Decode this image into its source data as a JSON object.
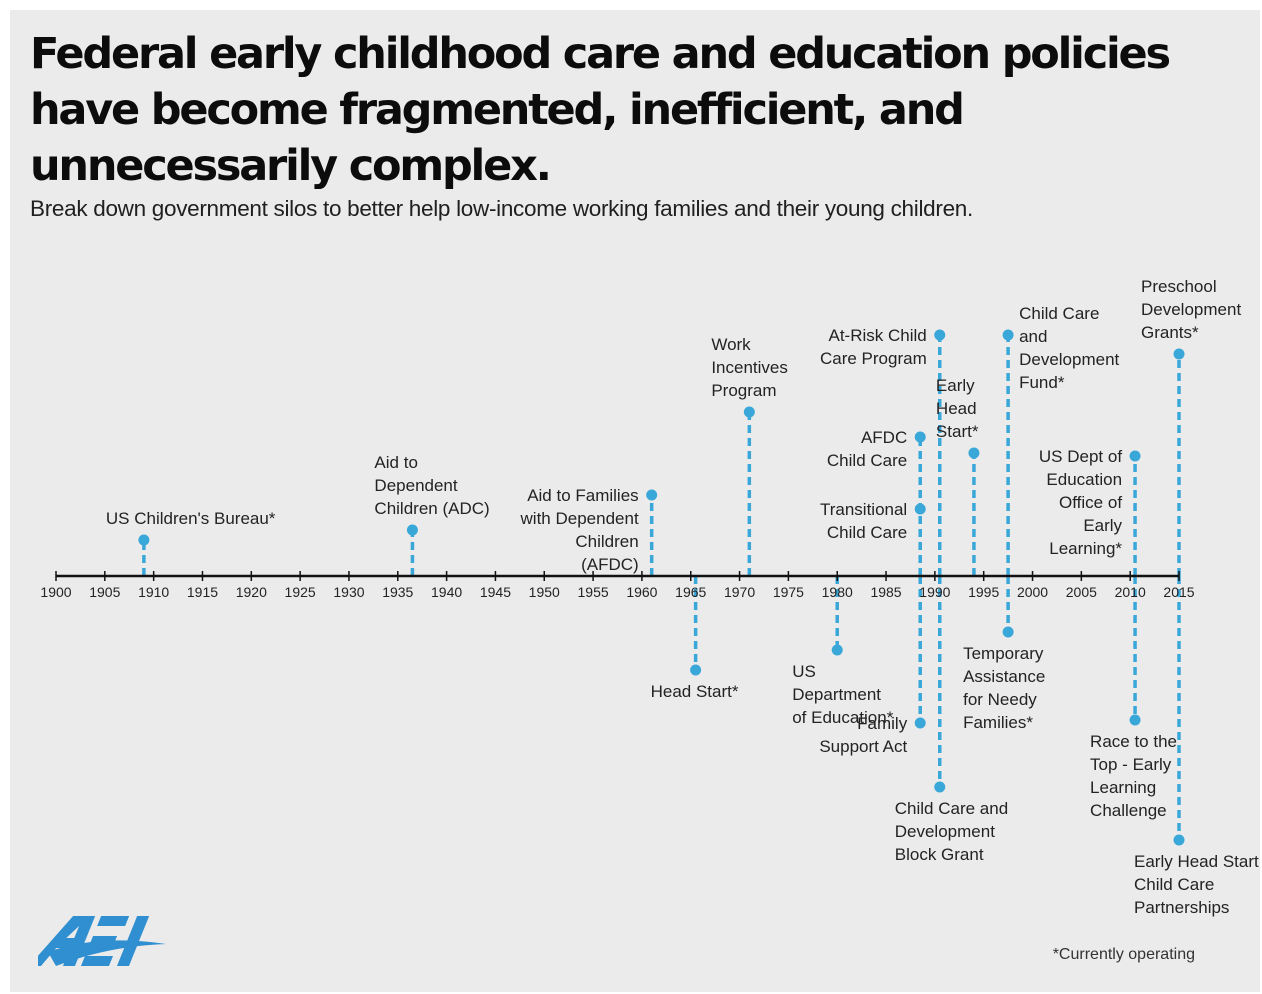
{
  "title": "Federal early childhood care and education policies have become fragmented, inefficient, and unnecessarily complex.",
  "subtitle": "Break down government silos to better help low-income working families and their young children.",
  "footnote": "*Currently operating",
  "logo_text": "AEI",
  "colors": {
    "background": "#ebebeb",
    "accent": "#3aa7d9",
    "logo": "#2f8fd0",
    "text": "#0c0c0c"
  },
  "axis": {
    "min": 1900,
    "max": 2015,
    "step": 5
  },
  "events": [
    {
      "year": 1909,
      "label": [
        "US Children's Bureau*"
      ],
      "end": 540,
      "label_pos": "above"
    },
    {
      "year": 1936.5,
      "label": [
        "Aid to",
        "Dependent",
        "Children (ADC)"
      ],
      "end": 530,
      "label_pos": "above"
    },
    {
      "year": 1961,
      "label": [
        "Aid to Families",
        "with Dependent",
        "Children",
        "(AFDC)"
      ],
      "end": 495,
      "label_pos": "left"
    },
    {
      "year": 1965.5,
      "label": [
        "Head Start*"
      ],
      "end": 670,
      "label_pos": "below"
    },
    {
      "year": 1971,
      "label": [
        "Work",
        "Incentives",
        "Program"
      ],
      "end": 412,
      "label_pos": "above"
    },
    {
      "year": 1980,
      "label": [
        "US",
        "Department",
        "of Education*"
      ],
      "end": 650,
      "label_pos": "below"
    },
    {
      "year": 1988.5,
      "label": [
        "AFDC",
        "Child Care"
      ],
      "end": 437,
      "label_pos": "left"
    },
    {
      "year": 1988.5,
      "label": [
        "Transitional",
        "Child Care"
      ],
      "end": 509,
      "label_pos": "left"
    },
    {
      "year": 1988.5,
      "label": [
        "Family",
        "Support Act"
      ],
      "end": 723,
      "label_pos": "left"
    },
    {
      "year": 1990.5,
      "label": [
        "At-Risk Child",
        "Care Program"
      ],
      "end": 335,
      "label_pos": "left"
    },
    {
      "year": 1990.5,
      "label": [
        "Child Care and",
        "Development",
        "Block Grant"
      ],
      "end": 787,
      "label_pos": "below"
    },
    {
      "year": 1994,
      "label": [
        "Early",
        "Head",
        "Start*"
      ],
      "end": 453,
      "label_pos": "above"
    },
    {
      "year": 1997.5,
      "label": [
        "Child Care",
        "and",
        "Development",
        "Fund*"
      ],
      "end": 335,
      "label_pos": "right"
    },
    {
      "year": 1997.5,
      "label": [
        "Temporary",
        "Assistance",
        "for Needy",
        "Families*"
      ],
      "end": 632,
      "label_pos": "below"
    },
    {
      "year": 2010.5,
      "label": [
        "US Dept of",
        "Education",
        "Office of",
        "Early",
        "Learning*"
      ],
      "end": 456,
      "label_pos": "left"
    },
    {
      "year": 2010.5,
      "label": [
        "Race to the",
        "Top - Early",
        "Learning",
        "Challenge"
      ],
      "end": 720,
      "label_pos": "below"
    },
    {
      "year": 2015,
      "label": [
        "Preschool",
        "Development",
        "Grants*"
      ],
      "end": 354,
      "label_pos": "above"
    },
    {
      "year": 2015,
      "label": [
        "Early Head Start -",
        "Child Care",
        "Partnerships"
      ],
      "end": 840,
      "label_pos": "below"
    }
  ]
}
